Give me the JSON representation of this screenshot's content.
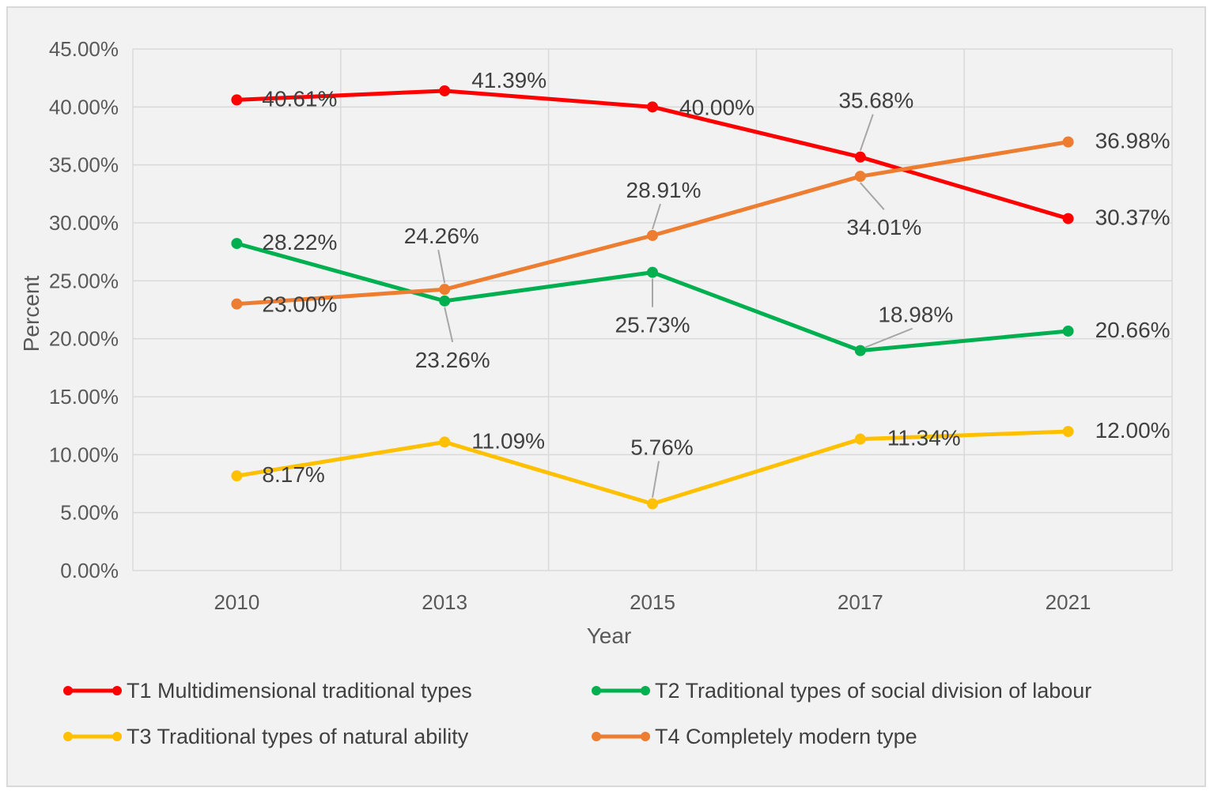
{
  "chart_data": {
    "type": "line",
    "title": "",
    "xlabel": "Year",
    "ylabel": "Percent",
    "categories": [
      "2010",
      "2013",
      "2015",
      "2017",
      "2021"
    ],
    "ylim": [
      0,
      45
    ],
    "yticks": [
      "0.00%",
      "5.00%",
      "10.00%",
      "15.00%",
      "20.00%",
      "25.00%",
      "30.00%",
      "35.00%",
      "40.00%",
      "45.00%"
    ],
    "grid": true,
    "legend_position": "bottom",
    "series": [
      {
        "name": "T1 Multidimensional traditional types",
        "color": "#ff0000",
        "values": [
          40.61,
          41.39,
          40.0,
          35.68,
          30.37
        ],
        "labels": [
          "40.61%",
          "41.39%",
          "40.00%",
          "35.68%",
          "30.37%"
        ]
      },
      {
        "name": "T2 Traditional types of social division of labour",
        "color": "#00b050",
        "values": [
          28.22,
          23.26,
          25.73,
          18.98,
          20.66
        ],
        "labels": [
          "28.22%",
          "23.26%",
          "25.73%",
          "18.98%",
          "20.66%"
        ]
      },
      {
        "name": "T3 Traditional types of natural ability",
        "color": "#ffc000",
        "values": [
          8.17,
          11.09,
          5.76,
          11.34,
          12.0
        ],
        "labels": [
          "8.17%",
          "11.09%",
          "5.76%",
          "11.34%",
          "12.00%"
        ]
      },
      {
        "name": "T4 Completely modern type",
        "color": "#ed7d31",
        "values": [
          23.0,
          24.26,
          28.91,
          34.01,
          36.98
        ],
        "labels": [
          "23.00%",
          "24.26%",
          "28.91%",
          "34.01%",
          "36.98%"
        ]
      }
    ]
  }
}
